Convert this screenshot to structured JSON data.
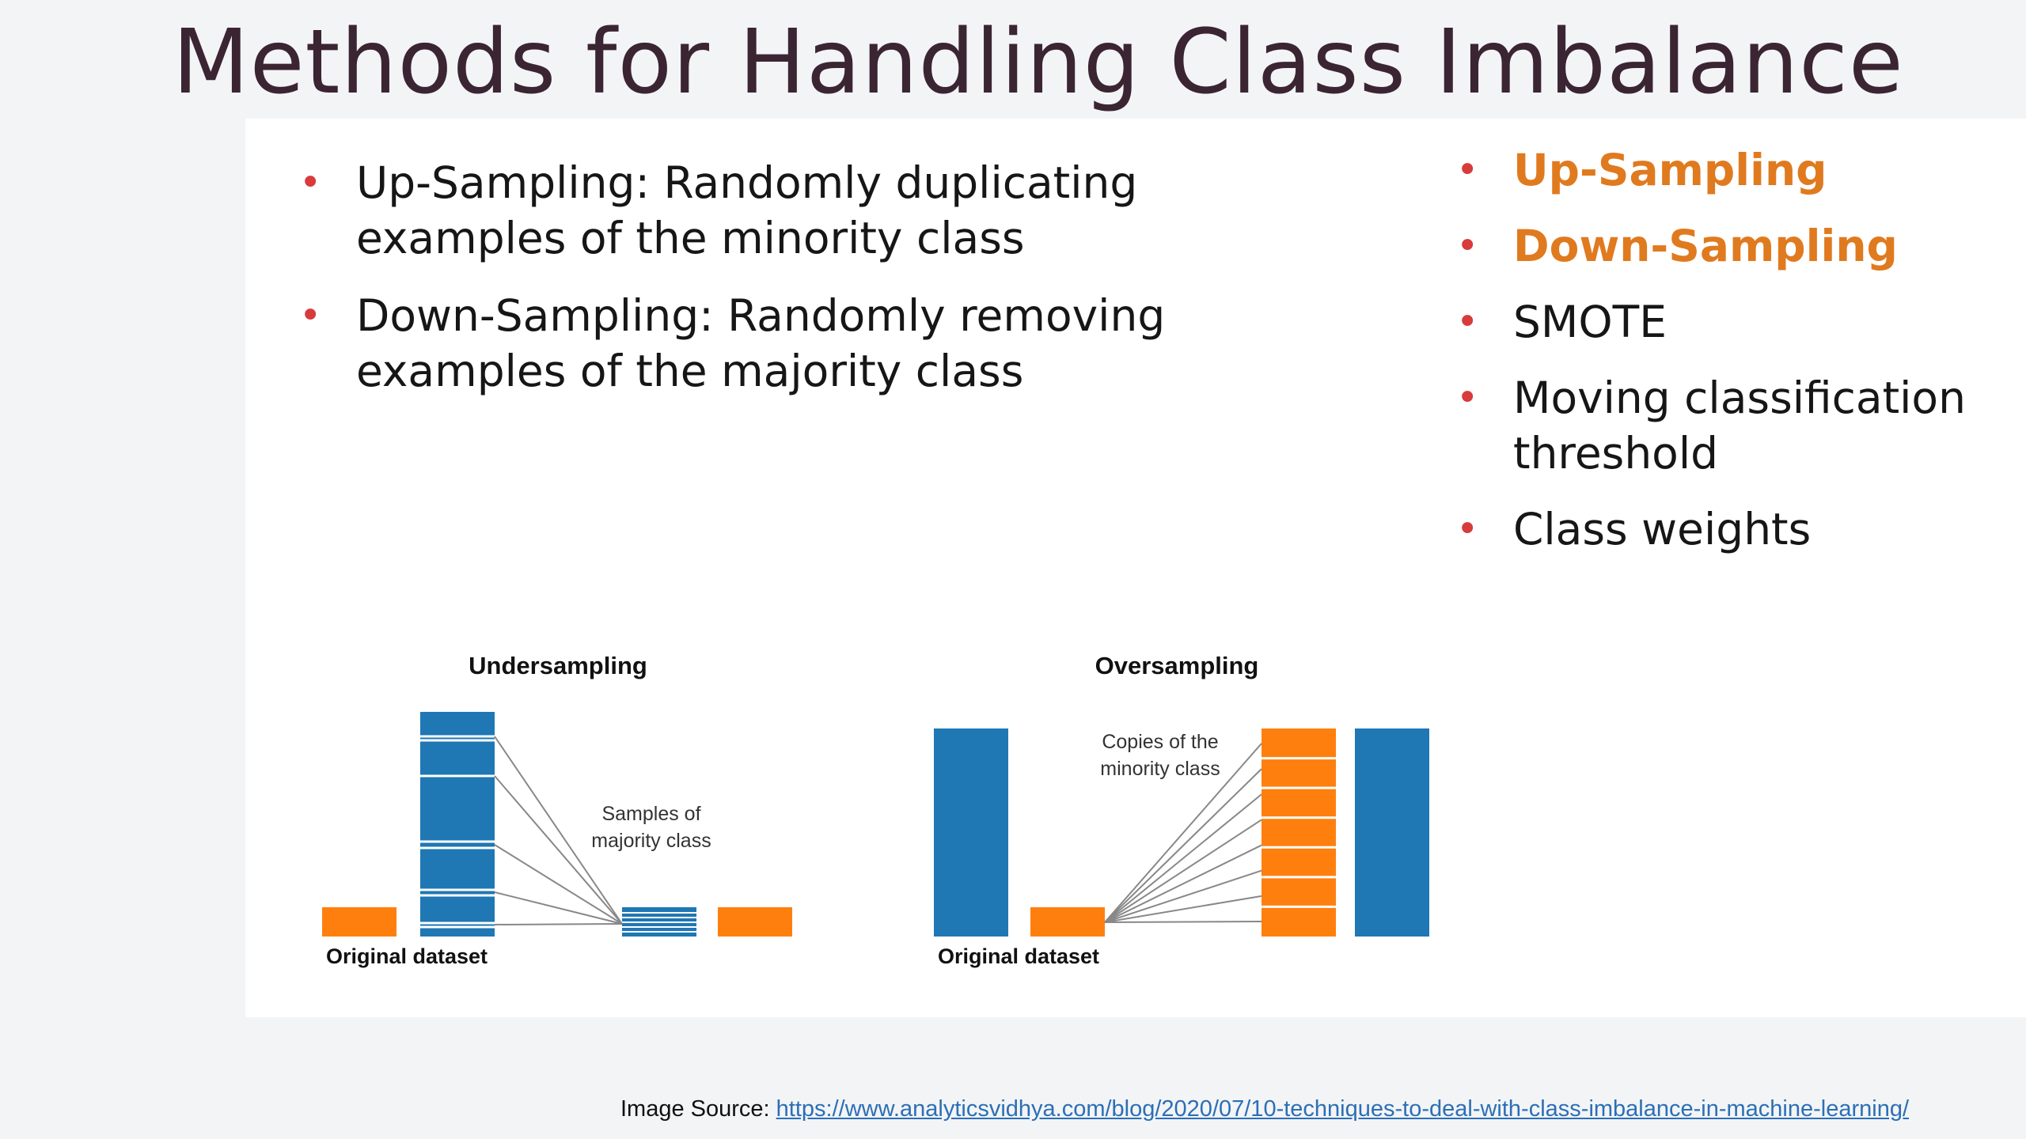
{
  "slide": {
    "title": "Methods for Handling Class Imbalance"
  },
  "left_bullets": [
    "Up-Sampling: Randomly duplicating examples of the minority class",
    "Down-Sampling: Randomly removing examples of the majority class"
  ],
  "right_bullets": [
    {
      "text": "Up-Sampling",
      "highlighted": true
    },
    {
      "text": "Down-Sampling",
      "highlighted": true
    },
    {
      "text": "SMOTE",
      "highlighted": false
    },
    {
      "text": "Moving classification threshold",
      "highlighted": false
    },
    {
      "text": "Class weights",
      "highlighted": false
    }
  ],
  "diagram": {
    "undersampling": {
      "title": "Undersampling",
      "annotation_line1": "Samples of",
      "annotation_line2": "majority class",
      "caption": "Original dataset"
    },
    "oversampling": {
      "title": "Oversampling",
      "annotation_line1": "Copies of the",
      "annotation_line2": "minority class",
      "caption": "Original dataset"
    },
    "colors": {
      "majority": "#1f77b4",
      "minority": "#ff7f0e"
    }
  },
  "source": {
    "label": "Image Source: ",
    "url": "https://www.analyticsvidhya.com/blog/2020/07/10-techniques-to-deal-with-class-imbalance-in-machine-learning/"
  }
}
